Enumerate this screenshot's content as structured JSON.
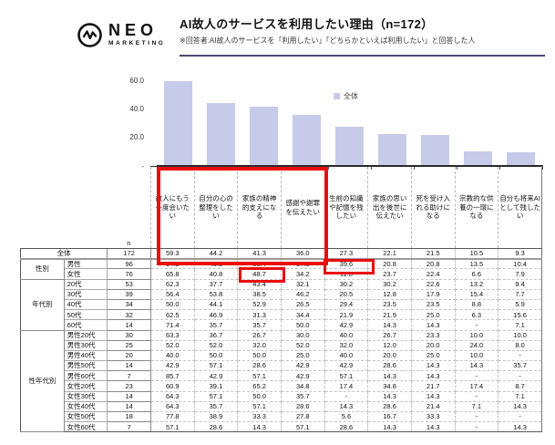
{
  "header": {
    "logo": {
      "brand": "NEO",
      "sub": "MARKETING",
      "icon": "pulse-circle-icon"
    },
    "title": "AI故人のサービスを利用したい理由（n=172）",
    "subtitle": "※回答者:AI故人のサービスを「利用したい」「どちらかといえば利用したい」と回答した人"
  },
  "colors": {
    "bar": "#c6cbe9",
    "highlight_red": "#e90e0e",
    "title_rule": "#4a4a70"
  },
  "chart_data": {
    "type": "bar",
    "title": "AI故人のサービスを利用したい理由（n=172）",
    "legend": [
      {
        "label": "全体",
        "color": "#c6cbe9"
      }
    ],
    "legend_position": "top-center",
    "grid": false,
    "ylim": [
      0,
      60
    ],
    "yticks": [
      {
        "label": "60.0",
        "value": 60
      },
      {
        "label": "40.0",
        "value": 40
      },
      {
        "label": "20.0",
        "value": 20
      },
      {
        "label": "-",
        "value": 0
      }
    ],
    "categories": [
      "故人にもう一度会いたい",
      "自分の心の整理をしたい",
      "家族の精神的支えになる",
      "感謝や謝罪を伝えたい",
      "生前の知識や記憶を残したい",
      "家族の思い出を後世に伝えたい",
      "死を受け入れる助けになる",
      "宗教的な供養の一環になる",
      "自分も将来AIとして残したい"
    ],
    "series": [
      {
        "name": "全体",
        "values": [
          59.3,
          44.2,
          41.3,
          36.0,
          27.3,
          22.1,
          21.5,
          10.5,
          9.3
        ]
      }
    ]
  },
  "table": {
    "corner_header": "n",
    "row_groups": [
      {
        "group": "",
        "rows": [
          {
            "label": "全体",
            "n": "172",
            "values": [
              "59.3",
              "44.2",
              "41.3",
              "36.0",
              "27.3",
              "22.1",
              "21.5",
              "10.5",
              "9.3"
            ],
            "total": true
          }
        ]
      },
      {
        "group": "性別",
        "rows": [
          {
            "label": "男性",
            "n": "96",
            "values": [
              "54.2",
              "46.9",
              "35.4",
              "37.5",
              "39.6",
              "20.8",
              "20.8",
              "13.5",
              "10.4"
            ]
          },
          {
            "label": "女性",
            "n": "76",
            "values": [
              "65.8",
              "40.8",
              "48.7",
              "34.2",
              "11.8",
              "23.7",
              "22.4",
              "6.6",
              "7.9"
            ]
          }
        ]
      },
      {
        "group": "年代別",
        "rows": [
          {
            "label": "20代",
            "n": "53",
            "values": [
              "62.3",
              "37.7",
              "43.4",
              "32.1",
              "30.2",
              "30.2",
              "22.6",
              "13.2",
              "9.4"
            ]
          },
          {
            "label": "30代",
            "n": "39",
            "values": [
              "56.4",
              "53.8",
              "38.5",
              "46.2",
              "20.5",
              "12.8",
              "17.9",
              "15.4",
              "7.7"
            ]
          },
          {
            "label": "40代",
            "n": "34",
            "values": [
              "50.0",
              "44.1",
              "52.9",
              "26.5",
              "29.4",
              "23.5",
              "23.5",
              "8.8",
              "5.9"
            ]
          },
          {
            "label": "50代",
            "n": "32",
            "values": [
              "62.5",
              "46.9",
              "31.3",
              "34.4",
              "21.9",
              "21.9",
              "25.0",
              "6.3",
              "15.6"
            ]
          },
          {
            "label": "60代",
            "n": "14",
            "values": [
              "71.4",
              "35.7",
              "35.7",
              "50.0",
              "42.9",
              "14.3",
              "14.3",
              "-",
              "7.1"
            ]
          }
        ]
      },
      {
        "group": "性年代別",
        "rows": [
          {
            "label": "男性20代",
            "n": "30",
            "values": [
              "63.3",
              "36.7",
              "26.7",
              "30.0",
              "40.0",
              "26.7",
              "23.3",
              "10.0",
              "10.0"
            ]
          },
          {
            "label": "男性30代",
            "n": "25",
            "values": [
              "52.0",
              "52.0",
              "32.0",
              "52.0",
              "32.0",
              "12.0",
              "20.0",
              "24.0",
              "8.0"
            ]
          },
          {
            "label": "男性40代",
            "n": "20",
            "values": [
              "40.0",
              "50.0",
              "50.0",
              "25.0",
              "40.0",
              "20.0",
              "25.0",
              "10.0",
              "-"
            ]
          },
          {
            "label": "男性50代",
            "n": "14",
            "values": [
              "42.9",
              "57.1",
              "28.6",
              "42.9",
              "42.9",
              "28.6",
              "14.3",
              "14.3",
              "35.7"
            ]
          },
          {
            "label": "男性60代",
            "n": "7",
            "values": [
              "85.7",
              "42.9",
              "57.1",
              "42.9",
              "57.1",
              "14.3",
              "14.3",
              "-",
              "-"
            ]
          },
          {
            "label": "女性20代",
            "n": "23",
            "values": [
              "60.9",
              "39.1",
              "65.2",
              "34.8",
              "17.4",
              "34.8",
              "21.7",
              "17.4",
              "8.7"
            ]
          },
          {
            "label": "女性30代",
            "n": "14",
            "values": [
              "64.3",
              "57.1",
              "50.0",
              "35.7",
              "-",
              "14.3",
              "14.3",
              "-",
              "7.1"
            ]
          },
          {
            "label": "女性40代",
            "n": "14",
            "values": [
              "64.3",
              "35.7",
              "57.1",
              "28.6",
              "14.3",
              "28.6",
              "21.4",
              "7.1",
              "14.3"
            ]
          },
          {
            "label": "女性50代",
            "n": "18",
            "values": [
              "77.8",
              "38.9",
              "33.3",
              "27.8",
              "5.6",
              "16.7",
              "33.3",
              "-",
              "-"
            ]
          },
          {
            "label": "女性60代",
            "n": "7",
            "values": [
              "57.1",
              "28.6",
              "14.3",
              "57.1",
              "28.6",
              "14.3",
              "14.3",
              "-",
              "14.3"
            ]
          }
        ]
      }
    ]
  },
  "annotations": {
    "highlights": [
      {
        "name": "top4-reasons-and-total-row",
        "style": "red-box"
      },
      {
        "name": "male-knowledge-memory-39.6-cell",
        "style": "red-box"
      },
      {
        "name": "female-family-support-48.7-cell",
        "style": "red-box"
      }
    ]
  }
}
